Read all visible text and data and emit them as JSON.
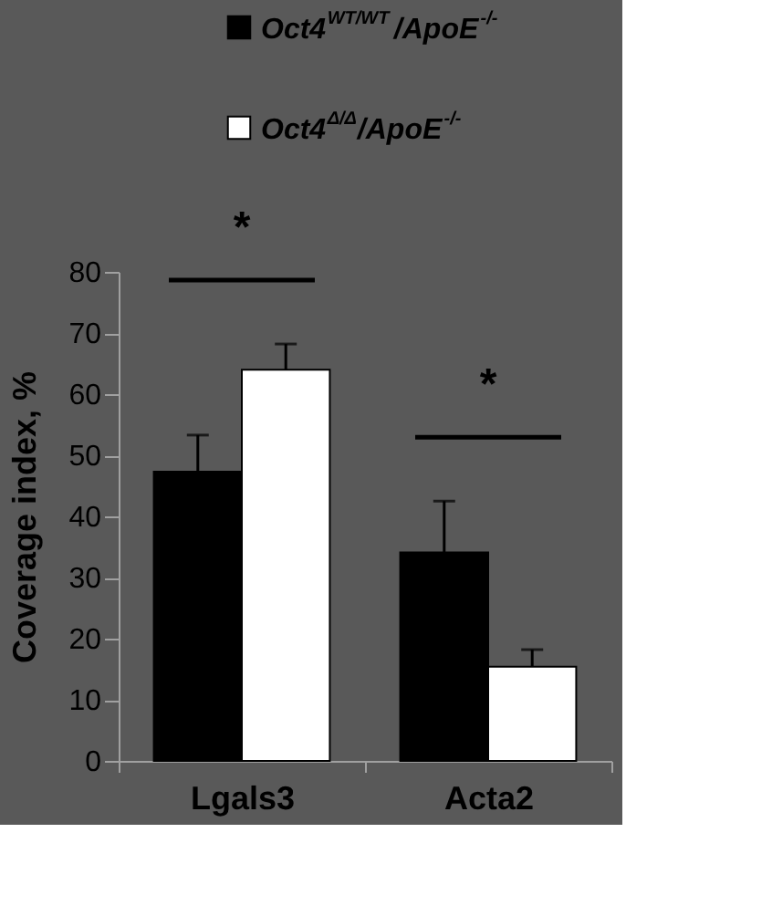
{
  "chart_data": {
    "type": "bar",
    "ylabel": "Coverage index, %",
    "categories": [
      "Lgals3",
      "Acta2"
    ],
    "series": [
      {
        "name": "Oct4$^{WT/WT}$/ApoE$^{-/-}$",
        "color": "#000000",
        "values": [
          47.3,
          34.1
        ],
        "errors": [
          [
            47.3,
            53.3
          ],
          [
            34.1,
            42.5
          ]
        ]
      },
      {
        "name": "Oct4$^{Δ/Δ}$/ApoE$^{-/-}$",
        "color": "#ffffff",
        "values": [
          64.0,
          15.4
        ],
        "errors": [
          [
            64.0,
            68.2
          ],
          [
            15.4,
            18.2
          ]
        ]
      }
    ],
    "ylim": [
      0,
      80
    ],
    "yticks": [
      0,
      10,
      20,
      30,
      40,
      50,
      60,
      70,
      80
    ],
    "grid": false,
    "legend": "top",
    "annotations": [
      "*",
      "*"
    ]
  }
}
